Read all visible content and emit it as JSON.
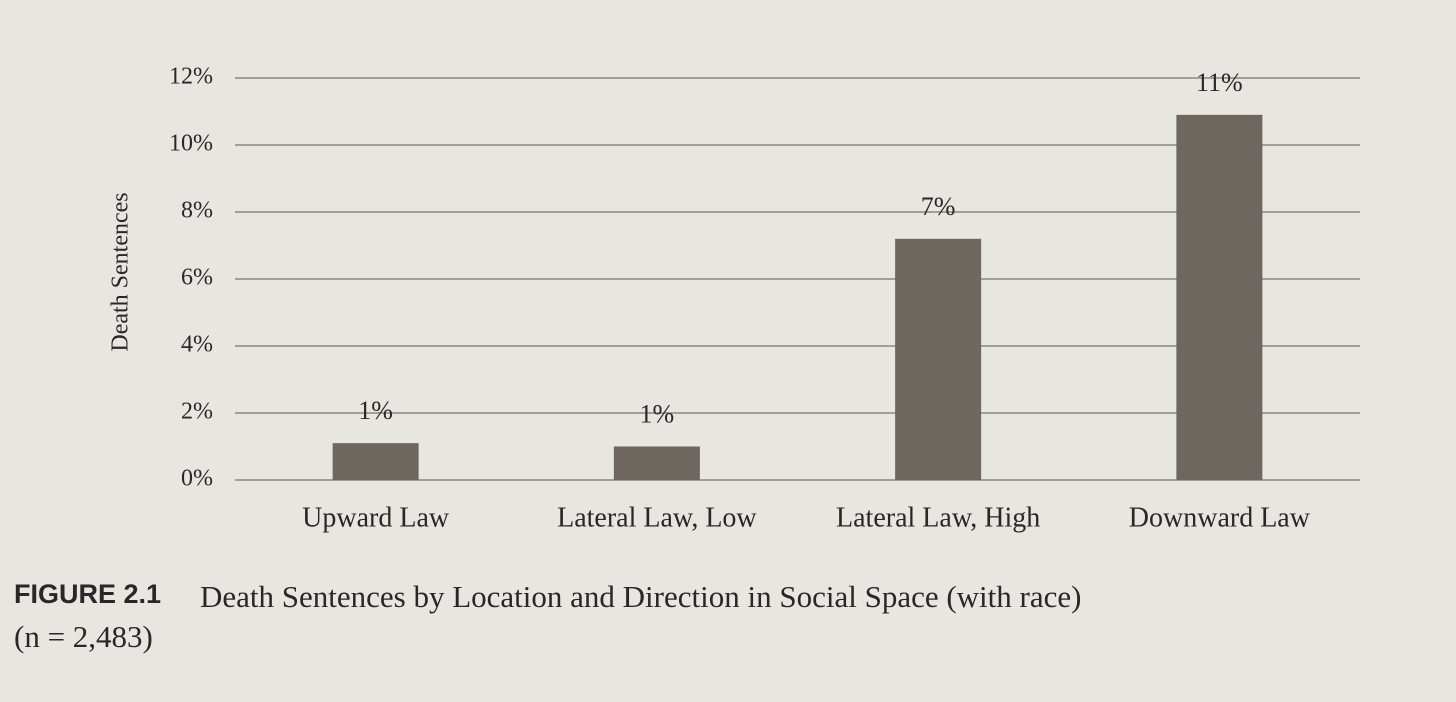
{
  "chart_data": {
    "type": "bar",
    "y_label": "Death Sentences",
    "categories": [
      "Upward Law",
      "Lateral Law, Low",
      "Lateral Law, High",
      "Downward Law"
    ],
    "values": [
      1.1,
      1.0,
      7.2,
      10.9
    ],
    "value_labels": [
      "1%",
      "1%",
      "7%",
      "11%"
    ],
    "color": "#6d6760",
    "ylim": [
      0,
      12
    ],
    "yticks": [
      {
        "value": 0,
        "label": "0%"
      },
      {
        "value": 2,
        "label": "2%"
      },
      {
        "value": 4,
        "label": "4%"
      },
      {
        "value": 6,
        "label": "6%"
      },
      {
        "value": 8,
        "label": "8%"
      },
      {
        "value": 10,
        "label": "10%"
      },
      {
        "value": 12,
        "label": "12%"
      }
    ],
    "grid": true,
    "figure_label": "FIGURE 2.1",
    "caption": "Death Sentences by Location and Direction in Social Space (with race)",
    "caption_note": "(n = 2,483)"
  }
}
